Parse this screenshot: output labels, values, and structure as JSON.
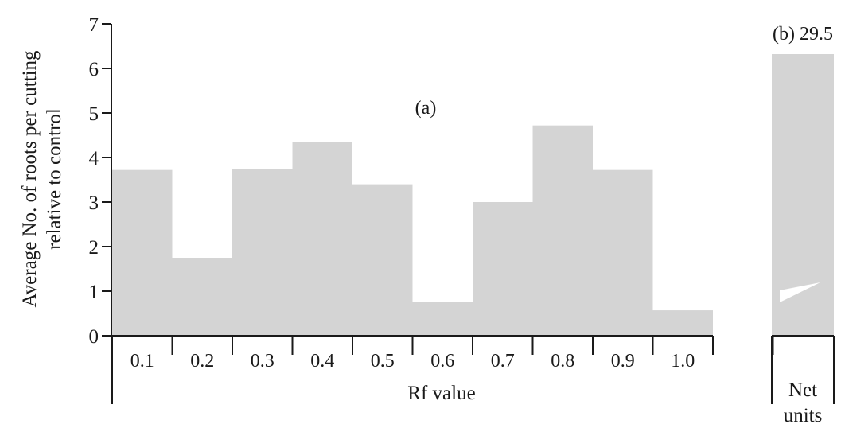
{
  "chart_data": [
    {
      "type": "bar",
      "panel": "(a)",
      "categories": [
        "0.1",
        "0.2",
        "0.3",
        "0.4",
        "0.5",
        "0.6",
        "0.7",
        "0.8",
        "0.9",
        "1.0"
      ],
      "values": [
        3.72,
        1.75,
        3.75,
        4.35,
        3.4,
        0.75,
        3.0,
        4.72,
        3.72,
        0.57
      ],
      "xlabel": "Rf value",
      "ylabel": "Average No. of roots per cutting relative to control",
      "ylim": [
        0,
        7
      ],
      "yticks": [
        "0",
        "1",
        "2",
        "3",
        "4",
        "5",
        "6",
        "7"
      ],
      "grid": false
    },
    {
      "type": "bar",
      "panel": "(b)",
      "categories": [
        "Net units"
      ],
      "values": [
        29.5
      ],
      "value_label": "29.5",
      "axis_break": true
    }
  ],
  "labels": {
    "ylabel_line1": "Average No. of roots per cutting",
    "ylabel_line2": "relative to control",
    "xlabel_a": "Rf value",
    "panel_a": "(a)",
    "panel_b_value": "(b) 29.5",
    "net_line1": "Net",
    "net_line2": "units"
  }
}
